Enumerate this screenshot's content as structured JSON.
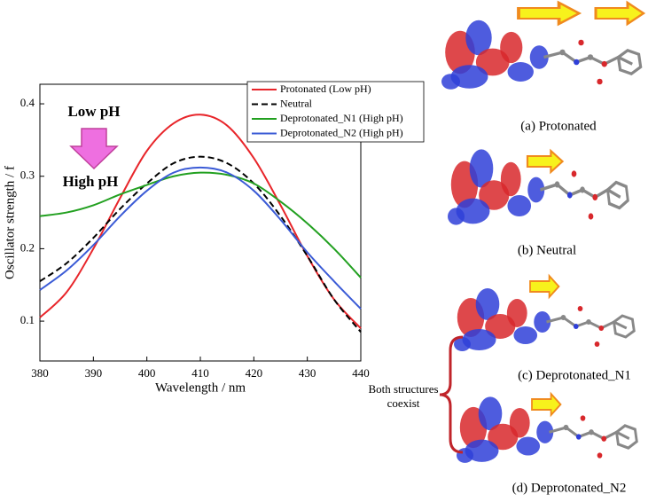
{
  "chart_data": {
    "type": "line",
    "x_label": "Wavelength / nm",
    "y_label": "Oscillator strength / f",
    "x": [
      380,
      385,
      390,
      395,
      400,
      405,
      410,
      415,
      420,
      425,
      430,
      435,
      440
    ],
    "series": [
      {
        "name": "Protonated (Low pH)",
        "color": "#e8252a",
        "style": "solid",
        "values": [
          0.105,
          0.14,
          0.2,
          0.27,
          0.335,
          0.373,
          0.385,
          0.37,
          0.325,
          0.26,
          0.19,
          0.13,
          0.09
        ]
      },
      {
        "name": "Neutral",
        "color": "#000000",
        "style": "dashed",
        "values": [
          0.155,
          0.18,
          0.215,
          0.255,
          0.29,
          0.318,
          0.327,
          0.318,
          0.29,
          0.245,
          0.19,
          0.13,
          0.085
        ]
      },
      {
        "name": "Deprotonated_N1 (High pH)",
        "color": "#22a020",
        "style": "solid",
        "values": [
          0.245,
          0.25,
          0.26,
          0.275,
          0.288,
          0.3,
          0.305,
          0.302,
          0.29,
          0.265,
          0.235,
          0.2,
          0.16
        ]
      },
      {
        "name": "Deprotonated_N2 (High pH)",
        "color": "#3b5bd6",
        "style": "solid",
        "values": [
          0.143,
          0.17,
          0.205,
          0.245,
          0.28,
          0.305,
          0.312,
          0.305,
          0.28,
          0.24,
          0.195,
          0.155,
          0.117
        ]
      }
    ],
    "xlim": [
      380,
      440
    ],
    "xticks": [
      380,
      390,
      400,
      410,
      420,
      430,
      440
    ],
    "ylim": [
      0.045,
      0.427
    ],
    "yticks": [
      0.1,
      0.2,
      0.3,
      0.4
    ],
    "legend": "upper right",
    "annotations": {
      "low": "Low pH",
      "high": "High pH"
    }
  },
  "panels": {
    "captions": [
      "(a) Protonated",
      "(b) Neutral",
      "(c) Deprotonated_N1",
      "(d) Deprotonated_N2"
    ],
    "coexist": [
      "Both structures",
      "coexist"
    ]
  }
}
